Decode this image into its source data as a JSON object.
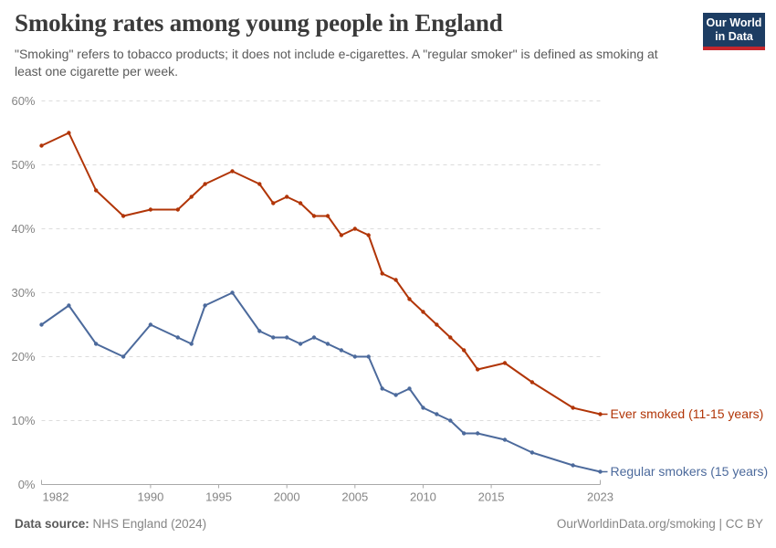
{
  "header": {
    "title": "Smoking rates among young people in England",
    "subtitle": "\"Smoking\" refers to tobacco products; it does not include e-cigarettes. A \"regular smoker\" is defined as smoking at least one cigarette per week."
  },
  "logo": {
    "line1": "Our World",
    "line2": "in Data",
    "bg_color": "#1d3d63",
    "stripe_color": "#c5262c"
  },
  "footer": {
    "source_label": "Data source:",
    "source_value": " NHS England (2024)",
    "link_text": "OurWorldinData.org/smoking | CC BY"
  },
  "chart_data": {
    "type": "line",
    "x": [
      1982,
      1984,
      1986,
      1988,
      1990,
      1992,
      1993,
      1994,
      1996,
      1998,
      1999,
      2000,
      2001,
      2002,
      2003,
      2004,
      2005,
      2006,
      2007,
      2008,
      2009,
      2010,
      2011,
      2012,
      2013,
      2014,
      2016,
      2018,
      2021,
      2023
    ],
    "series": [
      {
        "id": "ever-smoked",
        "name": "Ever smoked (11-15 years)",
        "color": "#b13507",
        "values": [
          53,
          55,
          46,
          42,
          43,
          43,
          45,
          47,
          49,
          47,
          44,
          45,
          44,
          42,
          42,
          39,
          40,
          39,
          33,
          32,
          29,
          27,
          25,
          23,
          21,
          18,
          19,
          16,
          12,
          11
        ]
      },
      {
        "id": "regular-smokers",
        "name": "Regular smokers (15 years)",
        "color": "#4c6a9c",
        "values": [
          25,
          28,
          22,
          20,
          25,
          23,
          22,
          28,
          30,
          24,
          23,
          23,
          22,
          23,
          22,
          21,
          20,
          20,
          15,
          14,
          15,
          12,
          11,
          10,
          8,
          8,
          7,
          5,
          3,
          2
        ]
      }
    ],
    "title": "Smoking rates among young people in England",
    "xlabel": "",
    "ylabel": "",
    "xlim": [
      1982,
      2023
    ],
    "ylim": [
      0,
      60
    ],
    "x_ticks": [
      1982,
      1990,
      1995,
      2000,
      2005,
      2010,
      2015,
      2023
    ],
    "y_ticks": [
      0,
      10,
      20,
      30,
      40,
      50,
      60
    ],
    "y_tick_suffix": "%",
    "grid": "horizontal-dashed",
    "legend_position": "end-of-line-labels",
    "grid_color": "#dcdcdc",
    "axis_color": "#a9a9a9",
    "tick_label_color": "#858585"
  }
}
